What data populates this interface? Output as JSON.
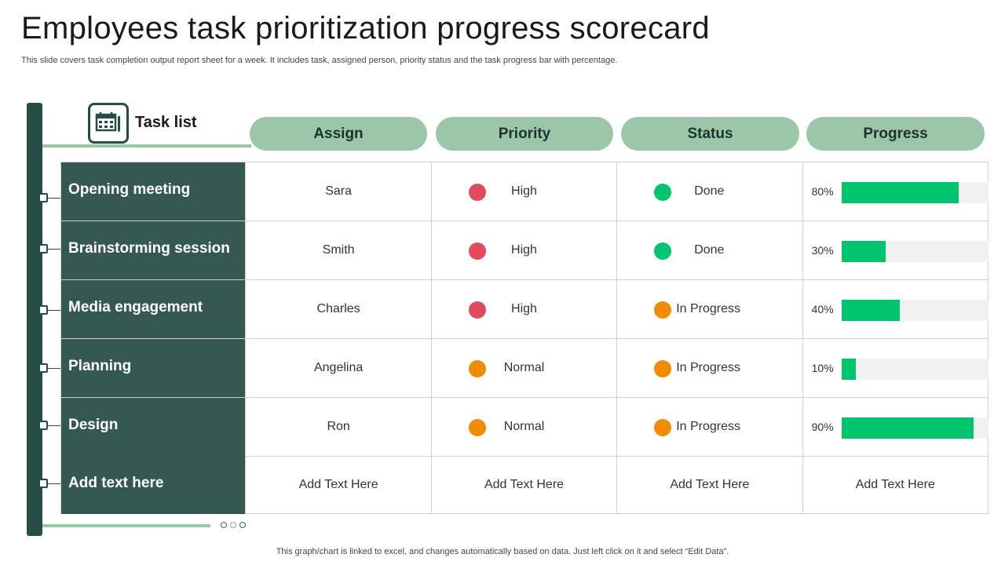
{
  "title": "Employees task prioritization progress scorecard",
  "subtitle": "This slide covers task completion output report sheet for a week. It includes task, assigned person, priority status and the task progress bar with percentage.",
  "task_list_label": "Task list",
  "columns": [
    "Assign",
    "Priority",
    "Status",
    "Progress"
  ],
  "colors": {
    "dark_green": "#234d45",
    "task_cell": "#355853",
    "pill": "#9cc6a8",
    "bar": "#00c46e",
    "high": "#e04a5c",
    "normal": "#f08c00",
    "done": "#00c46e",
    "in_progress": "#f08c00"
  },
  "rows": [
    {
      "task": "Opening meeting",
      "assign": "Sara",
      "priority": "High",
      "priority_color": "#e04a5c",
      "status": "Done",
      "status_color": "#00c46e",
      "progress_label": "80%",
      "progress": 0.8
    },
    {
      "task": "Brainstorming session",
      "assign": "Smith",
      "priority": "High",
      "priority_color": "#e04a5c",
      "status": "Done",
      "status_color": "#00c46e",
      "progress_label": "30%",
      "progress": 0.3
    },
    {
      "task": "Media engagement",
      "assign": "Charles",
      "priority": "High",
      "priority_color": "#e04a5c",
      "status": "In Progress",
      "status_color": "#f08c00",
      "progress_label": "40%",
      "progress": 0.4
    },
    {
      "task": "Planning",
      "assign": "Angelina",
      "priority": "Normal",
      "priority_color": "#f08c00",
      "status": "In Progress",
      "status_color": "#f08c00",
      "progress_label": "10%",
      "progress": 0.1
    },
    {
      "task": "Design",
      "assign": "Ron",
      "priority": "Normal",
      "priority_color": "#f08c00",
      "status": "In Progress",
      "status_color": "#f08c00",
      "progress_label": "90%",
      "progress": 0.9
    }
  ],
  "placeholder_row": {
    "task": "Add text here",
    "assign": "Add Text Here",
    "priority": "Add Text Here",
    "status": "Add Text Here",
    "progress": "Add Text Here"
  },
  "footer": "This graph/chart is linked to excel, and changes automatically based on data. Just left click on it and select “Edit Data”."
}
